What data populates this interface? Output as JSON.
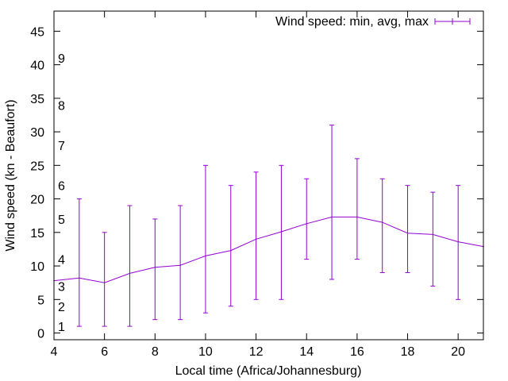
{
  "chart_data": {
    "type": "line",
    "title": "",
    "xlabel": "Local time (Africa/Johannesburg)",
    "ylabel": "Wind speed (kn - Beaufort)",
    "xlim": [
      4,
      21
    ],
    "ylim": [
      -1,
      48
    ],
    "x_ticks": [
      4,
      6,
      8,
      10,
      12,
      14,
      16,
      18,
      20
    ],
    "y_ticks": [
      0,
      5,
      10,
      15,
      20,
      25,
      30,
      35,
      40,
      45
    ],
    "beaufort_marks": [
      {
        "label": "1",
        "value": 1
      },
      {
        "label": "2",
        "value": 4
      },
      {
        "label": "3",
        "value": 7
      },
      {
        "label": "4",
        "value": 11
      },
      {
        "label": "5",
        "value": 17
      },
      {
        "label": "6",
        "value": 22
      },
      {
        "label": "7",
        "value": 28
      },
      {
        "label": "8",
        "value": 34
      },
      {
        "label": "9",
        "value": 41
      }
    ],
    "legend": {
      "label": "Wind speed: min, avg, max",
      "position": "top-right"
    },
    "color": "#9400d3",
    "series": [
      {
        "name": "Wind speed: min, avg, max",
        "x": [
          4,
          5,
          6,
          7,
          8,
          9,
          10,
          11,
          12,
          13,
          14,
          15,
          16,
          17,
          18,
          19,
          20,
          21
        ],
        "avg": [
          7.8,
          8.2,
          7.5,
          8.9,
          9.8,
          10.1,
          11.5,
          12.3,
          14.0,
          15.1,
          16.3,
          17.3,
          17.3,
          16.5,
          14.9,
          14.7,
          13.6,
          12.9
        ],
        "min": [
          null,
          1,
          1,
          1,
          2,
          2,
          3,
          4,
          5,
          5,
          11,
          8,
          11,
          9,
          9,
          7,
          5,
          null
        ],
        "max": [
          null,
          20,
          15,
          19,
          17,
          19,
          25,
          22,
          24,
          25,
          23,
          31,
          26,
          23,
          22,
          21,
          22,
          null
        ]
      }
    ]
  }
}
